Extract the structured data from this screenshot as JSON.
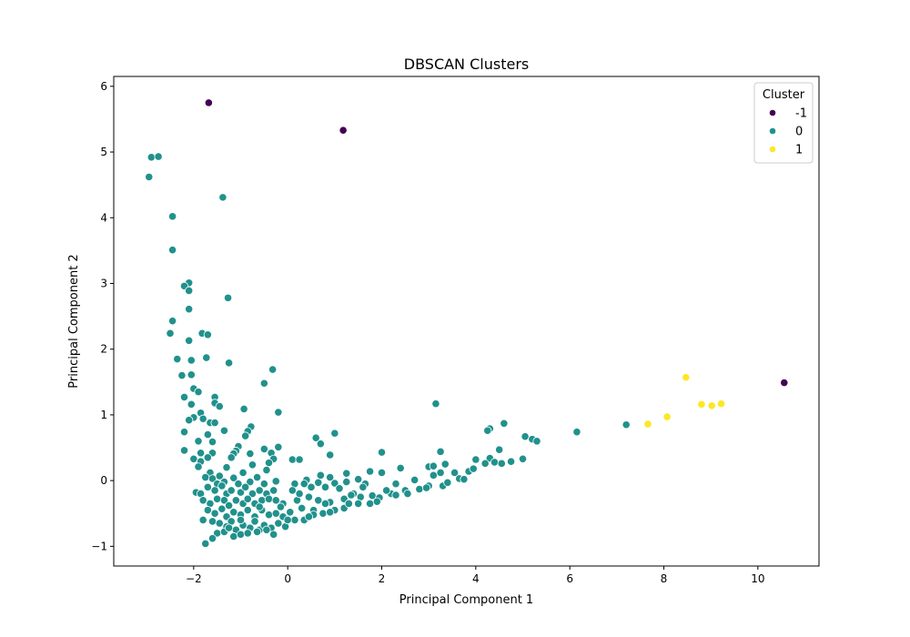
{
  "chart_data": {
    "type": "scatter",
    "title": "DBSCAN Clusters",
    "xlabel": "Principal Component 1",
    "ylabel": "Principal Component 2",
    "xlim": [
      -3.7,
      11.3
    ],
    "ylim": [
      -1.3,
      6.15
    ],
    "xticks": [
      -2,
      0,
      2,
      4,
      6,
      8,
      10
    ],
    "yticks": [
      -1,
      0,
      1,
      2,
      3,
      4,
      5,
      6
    ],
    "tick_labels": {
      "x": [
        "−2",
        "0",
        "2",
        "4",
        "6",
        "8",
        "10"
      ],
      "y": [
        "−1",
        "0",
        "1",
        "2",
        "3",
        "4",
        "5",
        "6"
      ]
    },
    "grid": false,
    "legend": {
      "title": "Cluster",
      "position": "top-right"
    },
    "series": [
      {
        "name": "-1",
        "color": "#440154",
        "points": [
          [
            -1.68,
            5.75
          ],
          [
            1.18,
            5.33
          ],
          [
            10.56,
            1.49
          ]
        ]
      },
      {
        "name": "0",
        "color": "#21918c",
        "points": [
          [
            -2.95,
            4.62
          ],
          [
            -2.9,
            4.92
          ],
          [
            -2.75,
            4.93
          ],
          [
            -1.38,
            4.31
          ],
          [
            -2.45,
            4.02
          ],
          [
            -2.45,
            3.51
          ],
          [
            -2.1,
            3.01
          ],
          [
            -2.2,
            2.96
          ],
          [
            -2.1,
            2.89
          ],
          [
            -1.27,
            2.78
          ],
          [
            -2.1,
            2.61
          ],
          [
            -2.45,
            2.43
          ],
          [
            -2.5,
            2.24
          ],
          [
            -1.82,
            2.24
          ],
          [
            -1.7,
            2.22
          ],
          [
            -2.1,
            2.13
          ],
          [
            -2.35,
            1.85
          ],
          [
            -1.73,
            1.87
          ],
          [
            -2.05,
            1.83
          ],
          [
            -1.25,
            1.79
          ],
          [
            -0.32,
            1.69
          ],
          [
            -2.25,
            1.6
          ],
          [
            -2.05,
            1.61
          ],
          [
            -0.5,
            1.48
          ],
          [
            -2.0,
            1.4
          ],
          [
            -1.9,
            1.35
          ],
          [
            -2.2,
            1.27
          ],
          [
            -1.55,
            1.27
          ],
          [
            -1.55,
            1.18
          ],
          [
            -2.05,
            1.16
          ],
          [
            3.15,
            1.17
          ],
          [
            -1.45,
            1.13
          ],
          [
            -0.93,
            1.09
          ],
          [
            -0.2,
            1.04
          ],
          [
            -1.85,
            1.03
          ],
          [
            -2.0,
            0.96
          ],
          [
            -2.1,
            0.92
          ],
          [
            -1.8,
            0.94
          ],
          [
            -1.65,
            0.88
          ],
          [
            -1.55,
            0.88
          ],
          [
            4.6,
            0.87
          ],
          [
            7.2,
            0.85
          ],
          [
            -0.78,
            0.82
          ],
          [
            -0.85,
            0.75
          ],
          [
            -1.35,
            0.76
          ],
          [
            -2.2,
            0.74
          ],
          [
            4.3,
            0.79
          ],
          [
            4.25,
            0.76
          ],
          [
            6.15,
            0.74
          ],
          [
            1.0,
            0.72
          ],
          [
            -0.9,
            0.68
          ],
          [
            -1.7,
            0.7
          ],
          [
            0.6,
            0.65
          ],
          [
            5.05,
            0.67
          ],
          [
            5.2,
            0.63
          ],
          [
            5.3,
            0.6
          ],
          [
            -1.6,
            0.59
          ],
          [
            -1.9,
            0.6
          ],
          [
            0.7,
            0.56
          ],
          [
            -1.05,
            0.52
          ],
          [
            -0.5,
            0.48
          ],
          [
            -2.2,
            0.46
          ],
          [
            -0.2,
            0.51
          ],
          [
            -0.35,
            0.42
          ],
          [
            -1.6,
            0.42
          ],
          [
            -1.1,
            0.45
          ],
          [
            -1.15,
            0.41
          ],
          [
            -0.8,
            0.41
          ],
          [
            -1.85,
            0.42
          ],
          [
            4.5,
            0.47
          ],
          [
            3.25,
            0.44
          ],
          [
            2.0,
            0.43
          ],
          [
            -2.0,
            0.33
          ],
          [
            -1.85,
            0.29
          ],
          [
            -1.7,
            0.35
          ],
          [
            -1.2,
            0.35
          ],
          [
            -0.3,
            0.33
          ],
          [
            0.1,
            0.32
          ],
          [
            0.25,
            0.32
          ],
          [
            0.9,
            0.39
          ],
          [
            3.0,
            0.21
          ],
          [
            3.1,
            0.22
          ],
          [
            3.35,
            0.25
          ],
          [
            4.0,
            0.32
          ],
          [
            4.3,
            0.34
          ],
          [
            4.4,
            0.28
          ],
          [
            4.55,
            0.26
          ],
          [
            4.75,
            0.29
          ],
          [
            5.0,
            0.33
          ],
          [
            2.4,
            0.19
          ],
          [
            -1.9,
            0.21
          ],
          [
            -1.3,
            0.2
          ],
          [
            -0.75,
            0.24
          ],
          [
            -0.4,
            0.27
          ],
          [
            1.75,
            0.14
          ],
          [
            2.0,
            0.12
          ],
          [
            3.25,
            0.12
          ],
          [
            3.55,
            0.12
          ],
          [
            3.85,
            0.14
          ],
          [
            3.95,
            0.18
          ],
          [
            4.2,
            0.26
          ],
          [
            -1.65,
            0.12
          ],
          [
            -0.45,
            0.16
          ],
          [
            -0.95,
            0.12
          ],
          [
            1.25,
            0.11
          ],
          [
            0.7,
            0.08
          ],
          [
            0.9,
            0.05
          ],
          [
            3.1,
            0.08
          ],
          [
            -1.75,
            0.05
          ],
          [
            -1.6,
            0.03
          ],
          [
            -1.45,
            0.07
          ],
          [
            -1.15,
            0.04
          ],
          [
            -0.65,
            0.05
          ],
          [
            -0.25,
            -0.01
          ],
          [
            0.4,
            0.01
          ],
          [
            1.5,
            0.02
          ],
          [
            1.65,
            -0.05
          ],
          [
            2.7,
            0.01
          ],
          [
            3.65,
            0.03
          ],
          [
            3.75,
            0.02
          ],
          [
            -1.5,
            -0.05
          ],
          [
            -1.35,
            -0.02
          ],
          [
            -1.05,
            -0.05
          ],
          [
            -0.8,
            -0.02
          ],
          [
            -0.5,
            -0.05
          ],
          [
            0.15,
            -0.05
          ],
          [
            0.35,
            -0.05
          ],
          [
            0.65,
            -0.03
          ],
          [
            1.0,
            -0.04
          ],
          [
            1.25,
            -0.02
          ],
          [
            2.3,
            -0.05
          ],
          [
            3.0,
            -0.08
          ],
          [
            -1.95,
            -0.18
          ],
          [
            -1.85,
            -0.2
          ],
          [
            -1.7,
            -0.1
          ],
          [
            -1.55,
            -0.15
          ],
          [
            -1.4,
            -0.08
          ],
          [
            -1.3,
            -0.2
          ],
          [
            -1.2,
            -0.15
          ],
          [
            -1.0,
            -0.18
          ],
          [
            -0.9,
            -0.1
          ],
          [
            -0.75,
            -0.2
          ],
          [
            -0.6,
            -0.15
          ],
          [
            -0.45,
            -0.2
          ],
          [
            -0.3,
            -0.15
          ],
          [
            0.1,
            -0.15
          ],
          [
            0.5,
            -0.1
          ],
          [
            0.8,
            -0.1
          ],
          [
            1.1,
            -0.12
          ],
          [
            1.4,
            -0.2
          ],
          [
            2.2,
            -0.2
          ],
          [
            2.8,
            -0.13
          ],
          [
            2.95,
            -0.11
          ],
          [
            3.3,
            -0.08
          ],
          [
            3.4,
            -0.03
          ],
          [
            -1.8,
            -0.3
          ],
          [
            -1.65,
            -0.35
          ],
          [
            -1.5,
            -0.28
          ],
          [
            -1.35,
            -0.3
          ],
          [
            -1.25,
            -0.38
          ],
          [
            -1.1,
            -0.3
          ],
          [
            -0.95,
            -0.35
          ],
          [
            -0.85,
            -0.28
          ],
          [
            -0.7,
            -0.35
          ],
          [
            -0.55,
            -0.3
          ],
          [
            -0.4,
            -0.28
          ],
          [
            -0.25,
            -0.3
          ],
          [
            -0.1,
            -0.35
          ],
          [
            0.2,
            -0.3
          ],
          [
            0.45,
            -0.25
          ],
          [
            0.65,
            -0.3
          ],
          [
            0.9,
            -0.33
          ],
          [
            1.2,
            -0.28
          ],
          [
            1.35,
            -0.22
          ],
          [
            1.55,
            -0.25
          ],
          [
            1.8,
            -0.23
          ],
          [
            1.95,
            -0.26
          ],
          [
            2.3,
            -0.22
          ],
          [
            2.5,
            -0.15
          ],
          [
            -1.7,
            -0.45
          ],
          [
            -1.55,
            -0.5
          ],
          [
            -1.4,
            -0.43
          ],
          [
            -1.3,
            -0.55
          ],
          [
            -1.15,
            -0.48
          ],
          [
            -1.0,
            -0.52
          ],
          [
            -0.85,
            -0.45
          ],
          [
            -0.7,
            -0.55
          ],
          [
            -0.55,
            -0.45
          ],
          [
            -0.4,
            -0.52
          ],
          [
            -0.25,
            -0.5
          ],
          [
            -0.1,
            -0.55
          ],
          [
            0.05,
            -0.48
          ],
          [
            0.3,
            -0.42
          ],
          [
            0.55,
            -0.45
          ],
          [
            0.75,
            -0.5
          ],
          [
            1.0,
            -0.45
          ],
          [
            1.2,
            -0.42
          ],
          [
            1.5,
            -0.35
          ],
          [
            1.75,
            -0.35
          ],
          [
            1.9,
            -0.32
          ],
          [
            -1.8,
            -0.6
          ],
          [
            -1.6,
            -0.62
          ],
          [
            -1.45,
            -0.65
          ],
          [
            -1.3,
            -0.7
          ],
          [
            -1.2,
            -0.62
          ],
          [
            -1.1,
            -0.75
          ],
          [
            -0.95,
            -0.68
          ],
          [
            -0.8,
            -0.72
          ],
          [
            -0.7,
            -0.62
          ],
          [
            -0.6,
            -0.75
          ],
          [
            -0.5,
            -0.68
          ],
          [
            -0.35,
            -0.72
          ],
          [
            -0.2,
            -0.65
          ],
          [
            -0.05,
            -0.7
          ],
          [
            0.15,
            -0.6
          ],
          [
            0.35,
            -0.6
          ],
          [
            0.55,
            -0.52
          ],
          [
            0.9,
            -0.48
          ],
          [
            -1.5,
            -0.8
          ],
          [
            -1.35,
            -0.78
          ],
          [
            -1.15,
            -0.85
          ],
          [
            -1.0,
            -0.82
          ],
          [
            -0.85,
            -0.8
          ],
          [
            -0.65,
            -0.78
          ],
          [
            -0.45,
            -0.75
          ],
          [
            -1.75,
            -0.96
          ],
          [
            -1.6,
            -0.88
          ],
          [
            -1.25,
            -0.72
          ],
          [
            -0.3,
            -0.82
          ],
          [
            0.0,
            -0.6
          ],
          [
            0.8,
            -0.35
          ],
          [
            1.3,
            -0.35
          ],
          [
            2.1,
            -0.15
          ],
          [
            1.6,
            -0.1
          ],
          [
            -0.15,
            -0.4
          ],
          [
            -0.6,
            -0.4
          ],
          [
            -1.0,
            -0.6
          ],
          [
            0.25,
            -0.2
          ],
          [
            2.55,
            -0.2
          ],
          [
            0.45,
            -0.55
          ]
        ]
      },
      {
        "name": "1",
        "color": "#fde725",
        "points": [
          [
            8.47,
            1.57
          ],
          [
            8.8,
            1.16
          ],
          [
            9.02,
            1.14
          ],
          [
            9.22,
            1.17
          ],
          [
            8.07,
            0.97
          ],
          [
            7.66,
            0.86
          ]
        ]
      }
    ]
  }
}
